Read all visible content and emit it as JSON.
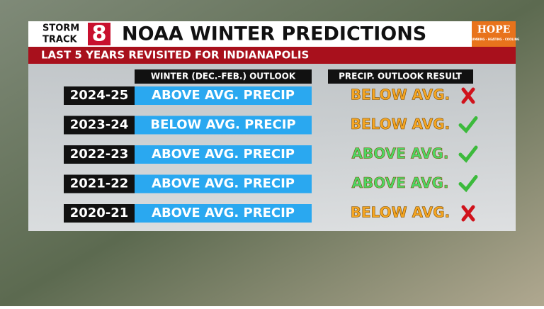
{
  "logo": {
    "line1": "STORM",
    "line2": "TRACK",
    "number": "8"
  },
  "header": {
    "title": "NOAA WINTER PREDICTIONS",
    "subtitle": "LAST 5 YEARS REVISITED FOR INDIANAPOLIS"
  },
  "sponsor": {
    "name": "HOPE",
    "tagline": "PLUMBING · HEATING · COOLING"
  },
  "table": {
    "columns": [
      "WINTER (DEC.-FEB.) OUTLOOK",
      "PRECIP. OUTLOOK RESULT"
    ],
    "rows": [
      {
        "year": "2024-25",
        "outlook": "ABOVE AVG. PRECIP",
        "result": "BELOW AVG.",
        "result_color": "#f5a623",
        "correct": false
      },
      {
        "year": "2023-24",
        "outlook": "BELOW AVG. PRECIP",
        "result": "BELOW AVG.",
        "result_color": "#f5a623",
        "correct": true
      },
      {
        "year": "2022-23",
        "outlook": "ABOVE AVG. PRECIP",
        "result": "ABOVE AVG.",
        "result_color": "#4cd964",
        "correct": true
      },
      {
        "year": "2021-22",
        "outlook": "ABOVE AVG. PRECIP",
        "result": "ABOVE AVG.",
        "result_color": "#4cd964",
        "correct": true
      },
      {
        "year": "2020-21",
        "outlook": "ABOVE AVG. PRECIP",
        "result": "BELOW AVG.",
        "result_color": "#f5a623",
        "correct": false
      }
    ]
  }
}
